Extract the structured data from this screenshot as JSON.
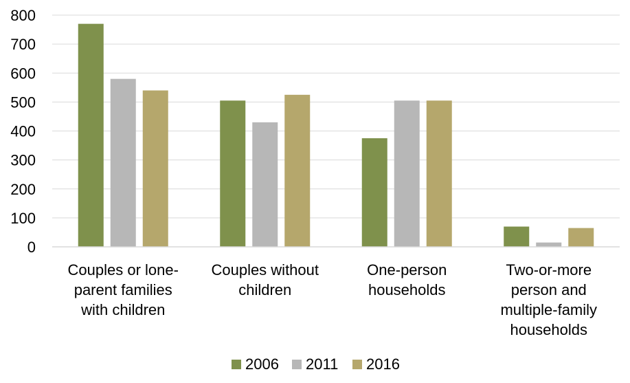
{
  "chart_data": {
    "type": "bar",
    "title": "",
    "xlabel": "",
    "ylabel": "",
    "ylim": [
      0,
      800
    ],
    "yticks": [
      0,
      100,
      200,
      300,
      400,
      500,
      600,
      700,
      800
    ],
    "grid": true,
    "legend_position": "bottom",
    "categories": [
      [
        "Couples or lone-",
        "parent families",
        "with children"
      ],
      [
        "Couples without",
        "children"
      ],
      [
        "One-person",
        "households"
      ],
      [
        "Two-or-more",
        "person and",
        "multiple-family",
        "households"
      ]
    ],
    "series": [
      {
        "name": "2006",
        "color": "#7f914c",
        "values": [
          770,
          505,
          375,
          70
        ]
      },
      {
        "name": "2011",
        "color": "#b7b7b7",
        "values": [
          580,
          430,
          505,
          15
        ]
      },
      {
        "name": "2016",
        "color": "#b5a76c",
        "values": [
          540,
          525,
          505,
          65
        ]
      }
    ]
  }
}
